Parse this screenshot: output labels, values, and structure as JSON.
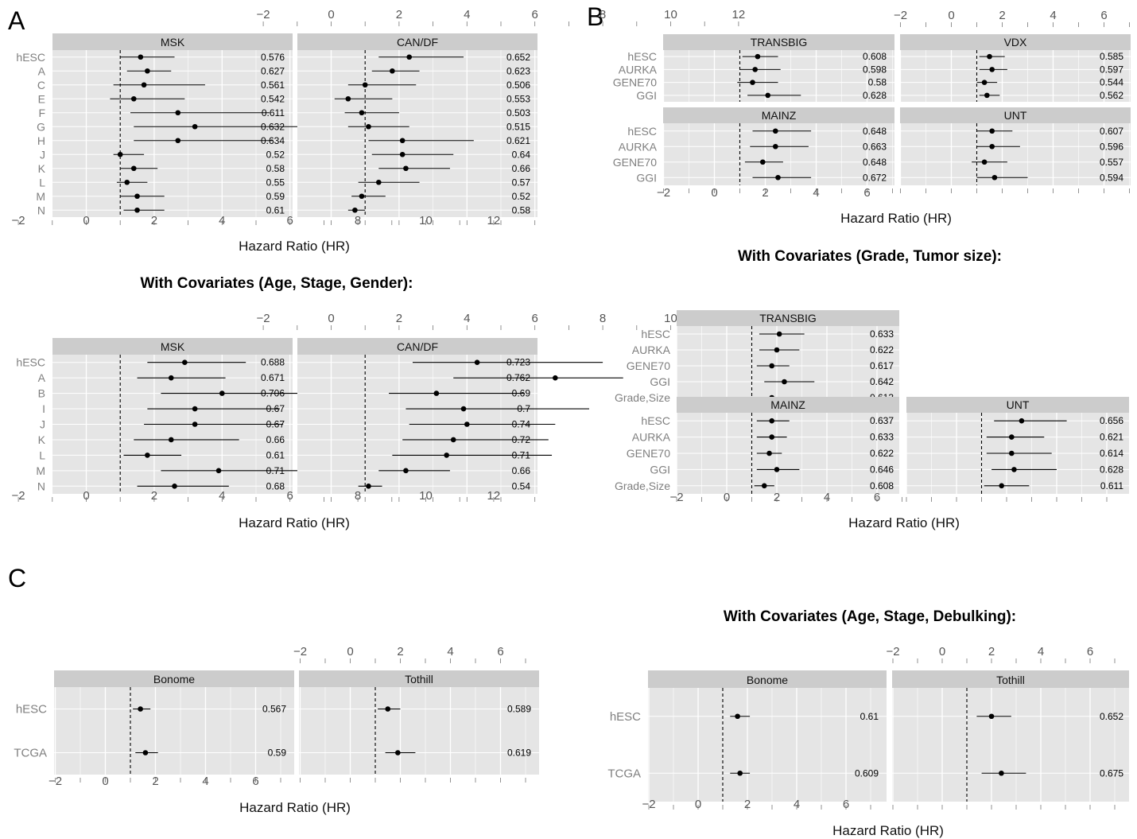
{
  "panel_letters": [
    "A",
    "B",
    "C"
  ],
  "xlabel": "Hazard Ratio (HR)",
  "covariate_titles": {
    "A": "With Covariates (Age, Stage, Gender):",
    "B": "With Covariates (Grade, Tumor size):",
    "C": "With Covariates (Age, Stage, Debulking):"
  },
  "chart_data": [
    {
      "id": "A-top",
      "type": "forest",
      "panel": "A",
      "xlim": [
        -2,
        12
      ],
      "xticks": [
        -2,
        0,
        2,
        4,
        6,
        8,
        10,
        12
      ],
      "ref_line": 1,
      "rows": [
        "hESC",
        "A",
        "C",
        "E",
        "F",
        "G",
        "H",
        "J",
        "K",
        "L",
        "M",
        "N"
      ],
      "facets": [
        {
          "name": "MSK",
          "hr": [
            1.6,
            1.8,
            1.7,
            1.4,
            2.7,
            3.2,
            2.7,
            1.0,
            1.4,
            1.2,
            1.5,
            1.5
          ],
          "lo": [
            1.0,
            1.2,
            0.8,
            0.7,
            1.3,
            1.4,
            1.4,
            0.8,
            1.0,
            0.9,
            1.0,
            1.1
          ],
          "hi": [
            2.6,
            2.5,
            3.5,
            2.9,
            5.4,
            6.8,
            5.5,
            1.7,
            2.1,
            1.8,
            2.3,
            2.3
          ],
          "auc": [
            "0.576",
            "0.627",
            "0.561",
            "0.542",
            "0.611",
            "0.632",
            "0.634",
            "0.52",
            "0.58",
            "0.55",
            "0.59",
            "0.61"
          ]
        },
        {
          "name": "CAN/DF",
          "hr": [
            2.3,
            1.8,
            1.0,
            0.5,
            0.9,
            1.1,
            2.1,
            2.1,
            2.2,
            1.4,
            0.9,
            0.7
          ],
          "lo": [
            1.4,
            1.2,
            0.5,
            0.1,
            0.4,
            0.5,
            1.1,
            1.2,
            1.4,
            0.8,
            0.6,
            0.5
          ],
          "hi": [
            3.9,
            2.6,
            2.5,
            1.8,
            2.0,
            2.3,
            4.2,
            3.6,
            3.5,
            2.6,
            1.6,
            1.0
          ],
          "auc": [
            "0.652",
            "0.623",
            "0.506",
            "0.553",
            "0.503",
            "0.515",
            "0.621",
            "0.64",
            "0.66",
            "0.57",
            "0.52",
            "0.58"
          ]
        }
      ]
    },
    {
      "id": "A-cov",
      "type": "forest",
      "panel": "A",
      "xlim": [
        -2,
        12
      ],
      "xticks": [
        -2,
        0,
        2,
        4,
        6,
        8,
        10,
        12
      ],
      "ref_line": 1,
      "rows": [
        "hESC",
        "A",
        "B",
        "I",
        "J",
        "K",
        "L",
        "M",
        "N"
      ],
      "facets": [
        {
          "name": "MSK",
          "hr": [
            2.9,
            2.5,
            4.0,
            3.2,
            3.2,
            2.5,
            1.8,
            3.9,
            2.6
          ],
          "lo": [
            1.8,
            1.5,
            2.2,
            1.8,
            1.7,
            1.4,
            1.1,
            2.2,
            1.5
          ],
          "hi": [
            4.7,
            4.1,
            7.6,
            5.7,
            5.8,
            4.5,
            2.8,
            7.2,
            4.2
          ],
          "auc": [
            "0.688",
            "0.671",
            "0.706",
            "0.67",
            "0.67",
            "0.66",
            "0.61",
            "0.71",
            "0.68"
          ]
        },
        {
          "name": "CAN/DF",
          "hr": [
            4.3,
            6.6,
            3.1,
            3.9,
            4.0,
            3.6,
            3.4,
            2.2,
            1.1
          ],
          "lo": [
            2.4,
            3.6,
            1.7,
            2.2,
            2.3,
            2.1,
            1.8,
            1.4,
            0.8
          ],
          "hi": [
            8.0,
            8.6,
            5.7,
            7.6,
            6.6,
            6.4,
            6.5,
            3.5,
            1.5
          ],
          "auc": [
            "0.723",
            "0.762",
            "0.69",
            "0.7",
            "0.74",
            "0.72",
            "0.71",
            "0.66",
            "0.54"
          ]
        }
      ]
    },
    {
      "id": "B-top",
      "type": "forest",
      "panel": "B",
      "xlim": [
        -2,
        7
      ],
      "xticks": [
        -2,
        0,
        2,
        4,
        6
      ],
      "ref_line": 1,
      "rows": [
        "hESC",
        "AURKA",
        "GENE70",
        "GGI"
      ],
      "facets": [
        {
          "name": "TRANSBIG",
          "hr": [
            1.7,
            1.6,
            1.5,
            2.1
          ],
          "lo": [
            1.1,
            1.0,
            0.9,
            1.3
          ],
          "hi": [
            2.5,
            2.6,
            2.5,
            3.4
          ],
          "auc": [
            "0.608",
            "0.598",
            "0.58",
            "0.628"
          ]
        },
        {
          "name": "VDX",
          "hr": [
            1.5,
            1.6,
            1.3,
            1.4
          ],
          "lo": [
            1.1,
            1.1,
            1.0,
            1.1
          ],
          "hi": [
            2.1,
            2.2,
            1.8,
            1.9
          ],
          "auc": [
            "0.585",
            "0.597",
            "0.544",
            "0.562"
          ]
        },
        {
          "name": "MAINZ",
          "hr": [
            2.4,
            2.4,
            1.9,
            2.5
          ],
          "lo": [
            1.5,
            1.4,
            1.2,
            1.5
          ],
          "hi": [
            3.8,
            3.7,
            2.7,
            3.8
          ],
          "auc": [
            "0.648",
            "0.663",
            "0.648",
            "0.672"
          ]
        },
        {
          "name": "UNT",
          "hr": [
            1.6,
            1.6,
            1.3,
            1.7
          ],
          "lo": [
            1.0,
            1.0,
            0.8,
            1.0
          ],
          "hi": [
            2.4,
            2.7,
            2.2,
            3.0
          ],
          "auc": [
            "0.607",
            "0.596",
            "0.557",
            "0.594"
          ]
        }
      ]
    },
    {
      "id": "B-cov",
      "type": "forest",
      "panel": "B",
      "xlim": [
        -2,
        7
      ],
      "xticks": [
        -2,
        0,
        2,
        4,
        6
      ],
      "ref_line": 1,
      "rows": [
        "hESC",
        "AURKA",
        "GENE70",
        "GGI",
        "Grade,Size"
      ],
      "facets": [
        {
          "name": "TRANSBIG",
          "hr": [
            2.1,
            2.0,
            1.8,
            2.3,
            1.8
          ],
          "lo": [
            1.3,
            1.3,
            1.2,
            1.5,
            1.2
          ],
          "hi": [
            3.1,
            2.9,
            2.5,
            3.5,
            2.7
          ],
          "auc": [
            "0.633",
            "0.622",
            "0.617",
            "0.642",
            "0.613"
          ]
        },
        {
          "name": "MAINZ",
          "hr": [
            1.8,
            1.8,
            1.7,
            2.0,
            1.5
          ],
          "lo": [
            1.2,
            1.2,
            1.2,
            1.2,
            1.1
          ],
          "hi": [
            2.5,
            2.4,
            2.2,
            2.9,
            1.9
          ],
          "auc": [
            "0.637",
            "0.633",
            "0.622",
            "0.646",
            "0.608"
          ]
        },
        {
          "name": "UNT",
          "hr": [
            2.6,
            2.2,
            2.2,
            2.3,
            1.8
          ],
          "lo": [
            1.5,
            1.2,
            1.2,
            1.4,
            1.1
          ],
          "hi": [
            4.4,
            3.5,
            3.8,
            4.0,
            2.9
          ],
          "auc": [
            "0.656",
            "0.621",
            "0.614",
            "0.628",
            "0.611"
          ]
        }
      ]
    },
    {
      "id": "C-top",
      "type": "forest",
      "panel": "C",
      "xlim": [
        -2,
        7
      ],
      "xticks": [
        -2,
        0,
        2,
        4,
        6
      ],
      "ref_line": 1,
      "rows": [
        "hESC",
        "TCGA"
      ],
      "facets": [
        {
          "name": "Bonome",
          "hr": [
            1.4,
            1.6
          ],
          "lo": [
            1.1,
            1.2
          ],
          "hi": [
            1.8,
            2.1
          ],
          "auc": [
            "0.567",
            "0.59"
          ]
        },
        {
          "name": "Tothill",
          "hr": [
            1.5,
            1.9
          ],
          "lo": [
            1.1,
            1.4
          ],
          "hi": [
            2.0,
            2.6
          ],
          "auc": [
            "0.589",
            "0.619"
          ]
        }
      ]
    },
    {
      "id": "C-cov",
      "type": "forest",
      "panel": "C",
      "xlim": [
        -2,
        7
      ],
      "xticks": [
        -2,
        0,
        2,
        4,
        6
      ],
      "ref_line": 1,
      "rows": [
        "hESC",
        "TCGA"
      ],
      "facets": [
        {
          "name": "Bonome",
          "hr": [
            1.6,
            1.7
          ],
          "lo": [
            1.3,
            1.3
          ],
          "hi": [
            2.1,
            2.1
          ],
          "auc": [
            "0.61",
            "0.609"
          ]
        },
        {
          "name": "Tothill",
          "hr": [
            2.0,
            2.4
          ],
          "lo": [
            1.4,
            1.6
          ],
          "hi": [
            2.8,
            3.4
          ],
          "auc": [
            "0.652",
            "0.675"
          ]
        }
      ]
    }
  ]
}
